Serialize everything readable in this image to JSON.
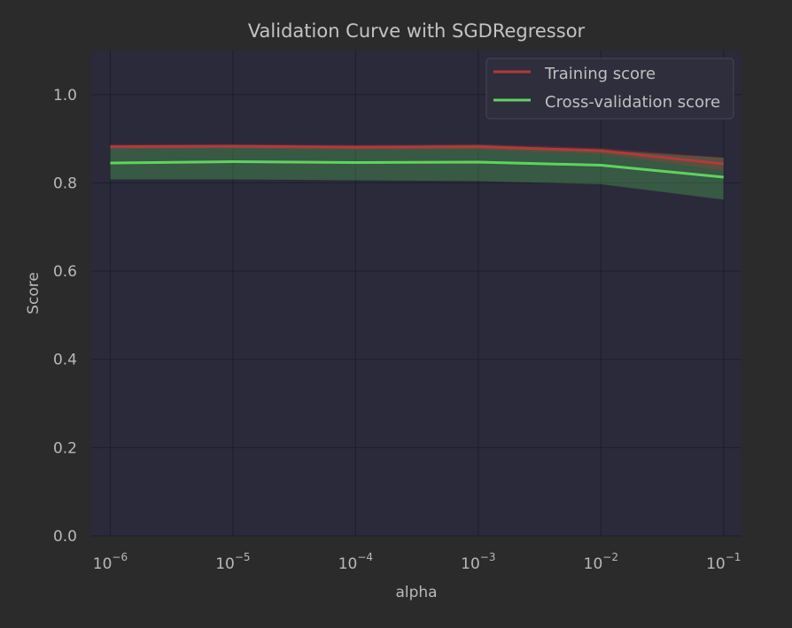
{
  "chart_data": {
    "type": "line",
    "title": "Validation Curve with SGDRegressor",
    "xlabel": "alpha",
    "ylabel": "Score",
    "x_scale": "log",
    "xlim": [
      7e-07,
      0.14
    ],
    "ylim": [
      0,
      1.1
    ],
    "grid": true,
    "legend_position": "top-right",
    "x": [
      1e-06,
      1e-05,
      0.0001,
      0.001,
      0.01,
      0.1
    ],
    "x_ticks": [
      {
        "value": 1e-06,
        "base": "10",
        "exp": "−6"
      },
      {
        "value": 1e-05,
        "base": "10",
        "exp": "−5"
      },
      {
        "value": 0.0001,
        "base": "10",
        "exp": "−4"
      },
      {
        "value": 0.001,
        "base": "10",
        "exp": "−3"
      },
      {
        "value": 0.01,
        "base": "10",
        "exp": "−2"
      },
      {
        "value": 0.1,
        "base": "10",
        "exp": "−1"
      }
    ],
    "y_ticks": [
      {
        "value": 0.0,
        "label": "0.0"
      },
      {
        "value": 0.2,
        "label": "0.2"
      },
      {
        "value": 0.4,
        "label": "0.4"
      },
      {
        "value": 0.6,
        "label": "0.6"
      },
      {
        "value": 0.8,
        "label": "0.8"
      },
      {
        "value": 1.0,
        "label": "1.0"
      }
    ],
    "series": [
      {
        "name": "Training score",
        "color": "#b23a3a",
        "values": [
          0.882,
          0.883,
          0.881,
          0.882,
          0.873,
          0.843
        ],
        "band_lower": [
          0.877,
          0.878,
          0.876,
          0.876,
          0.866,
          0.828
        ],
        "band_upper": [
          0.887,
          0.888,
          0.886,
          0.888,
          0.879,
          0.857
        ]
      },
      {
        "name": "Cross-validation score",
        "color": "#5fd35f",
        "values": [
          0.845,
          0.848,
          0.846,
          0.847,
          0.84,
          0.813
        ],
        "band_lower": [
          0.808,
          0.808,
          0.806,
          0.804,
          0.797,
          0.762
        ],
        "band_upper": [
          0.882,
          0.884,
          0.882,
          0.886,
          0.874,
          0.857
        ]
      }
    ],
    "colors": {
      "page_background": "#2b2b2b",
      "plot_background": "#2a2a3a",
      "grid": "#1f1f2a"
    }
  }
}
